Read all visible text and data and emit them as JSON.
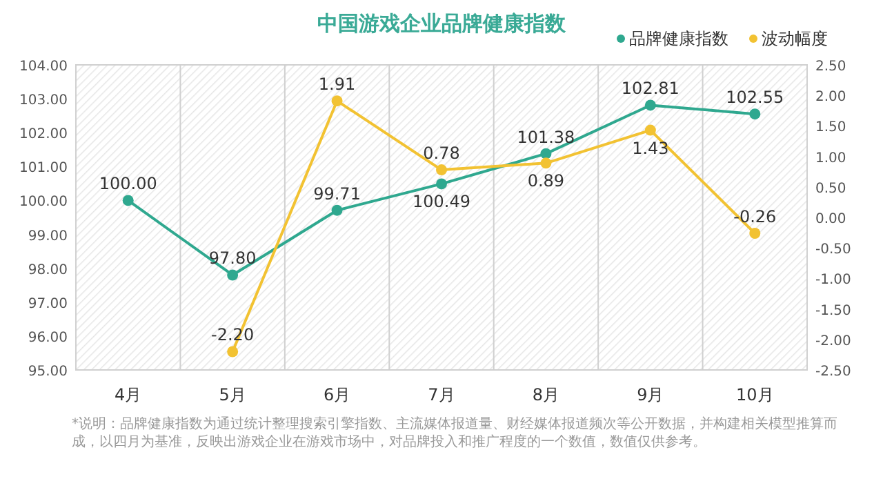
{
  "chart_data": {
    "type": "line",
    "title": "中国游戏企业品牌健康指数",
    "categories": [
      "4月",
      "5月",
      "6月",
      "7月",
      "8月",
      "9月",
      "10月"
    ],
    "series": [
      {
        "name": "品牌健康指数",
        "color": "#2fa88f",
        "values": [
          100.0,
          97.8,
          99.71,
          100.49,
          101.38,
          102.81,
          102.55
        ],
        "value_labels": [
          "100.00",
          "97.80",
          "99.71",
          "100.49",
          "101.38",
          "102.81",
          "102.55"
        ]
      },
      {
        "name": "波动幅度",
        "color": "#f2c232",
        "axis": "y2",
        "values": [
          null,
          -2.2,
          1.91,
          0.78,
          0.89,
          1.43,
          -0.26
        ],
        "value_labels": [
          null,
          "-2.20",
          "1.91",
          "0.78",
          "0.89",
          "1.43",
          "-0.26"
        ]
      }
    ],
    "ylim": [
      95,
      104
    ],
    "yticks": [
      {
        "value": 95,
        "label": "95.00"
      },
      {
        "value": 96,
        "label": "96.00"
      },
      {
        "value": 97,
        "label": "97.00"
      },
      {
        "value": 98,
        "label": "98.00"
      },
      {
        "value": 99,
        "label": "99.00"
      },
      {
        "value": 100,
        "label": "100.00"
      },
      {
        "value": 101,
        "label": "101.00"
      },
      {
        "value": 102,
        "label": "102.00"
      },
      {
        "value": 103,
        "label": "103.00"
      },
      {
        "value": 104,
        "label": "104.00"
      }
    ],
    "y2lim": [
      -2.5,
      2.5
    ],
    "y2ticks": [
      {
        "value": -2.5,
        "label": "-2.50"
      },
      {
        "value": -2,
        "label": "-2.00"
      },
      {
        "value": -1.5,
        "label": "-1.50"
      },
      {
        "value": -1,
        "label": "-1.00"
      },
      {
        "value": -0.5,
        "label": "-0.50"
      },
      {
        "value": 0,
        "label": "0.00"
      },
      {
        "value": 0.5,
        "label": "0.50"
      },
      {
        "value": 1,
        "label": "1.00"
      },
      {
        "value": 1.5,
        "label": "1.50"
      },
      {
        "value": 2,
        "label": "2.00"
      },
      {
        "value": 2.5,
        "label": "2.50"
      }
    ],
    "marker": "circle",
    "legend": "top right",
    "annotations": [
      "*说明：品牌健康指数为通过统计整理搜索引擎指数、主流媒体报道量、财经媒体报道频次等公开数据，并构建相关模型推算而成，以四月为基准，反映出游戏企业在游戏市场中，对品牌投入和推广程度的一个数值，数值仅供参考。"
    ]
  }
}
